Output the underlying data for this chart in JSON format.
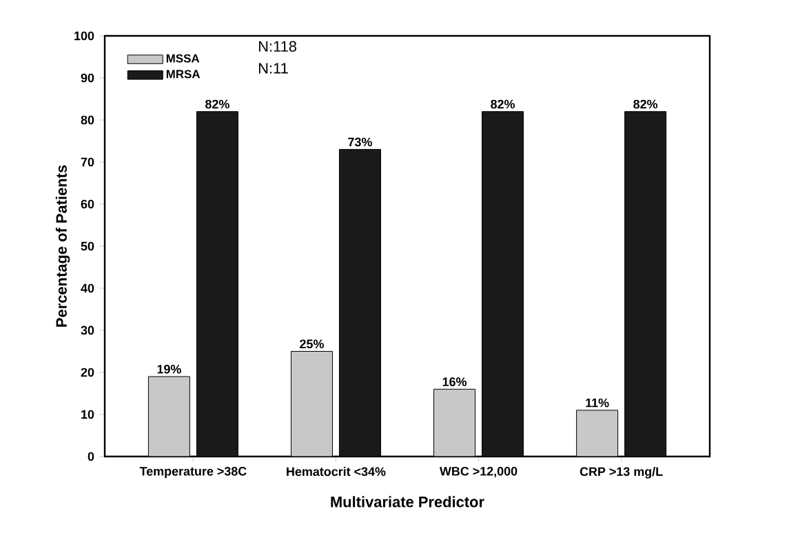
{
  "chart_data": {
    "type": "bar",
    "xlabel": "Multivariate Predictor",
    "ylabel": "Percentage of Patients",
    "categories": [
      "Temperature >38C",
      "Hematocrit <34%",
      "WBC >12,000",
      "CRP >13 mg/L"
    ],
    "series": [
      {
        "name": "MSSA",
        "color": "#c8c8c8",
        "values": [
          19,
          25,
          16,
          11
        ],
        "value_labels": [
          "19%",
          "25%",
          "16%",
          "11%"
        ]
      },
      {
        "name": "MRSA",
        "color": "#1a1a1a",
        "values": [
          82,
          73,
          82,
          82
        ],
        "value_labels": [
          "82%",
          "73%",
          "82%",
          "82%"
        ]
      }
    ],
    "ylim": [
      0,
      100
    ],
    "yticks": [
      0,
      10,
      20,
      30,
      40,
      50,
      60,
      70,
      80,
      90,
      100
    ],
    "legend": "top left",
    "grid": false,
    "annotations": [
      "N:118",
      "N:11"
    ]
  }
}
